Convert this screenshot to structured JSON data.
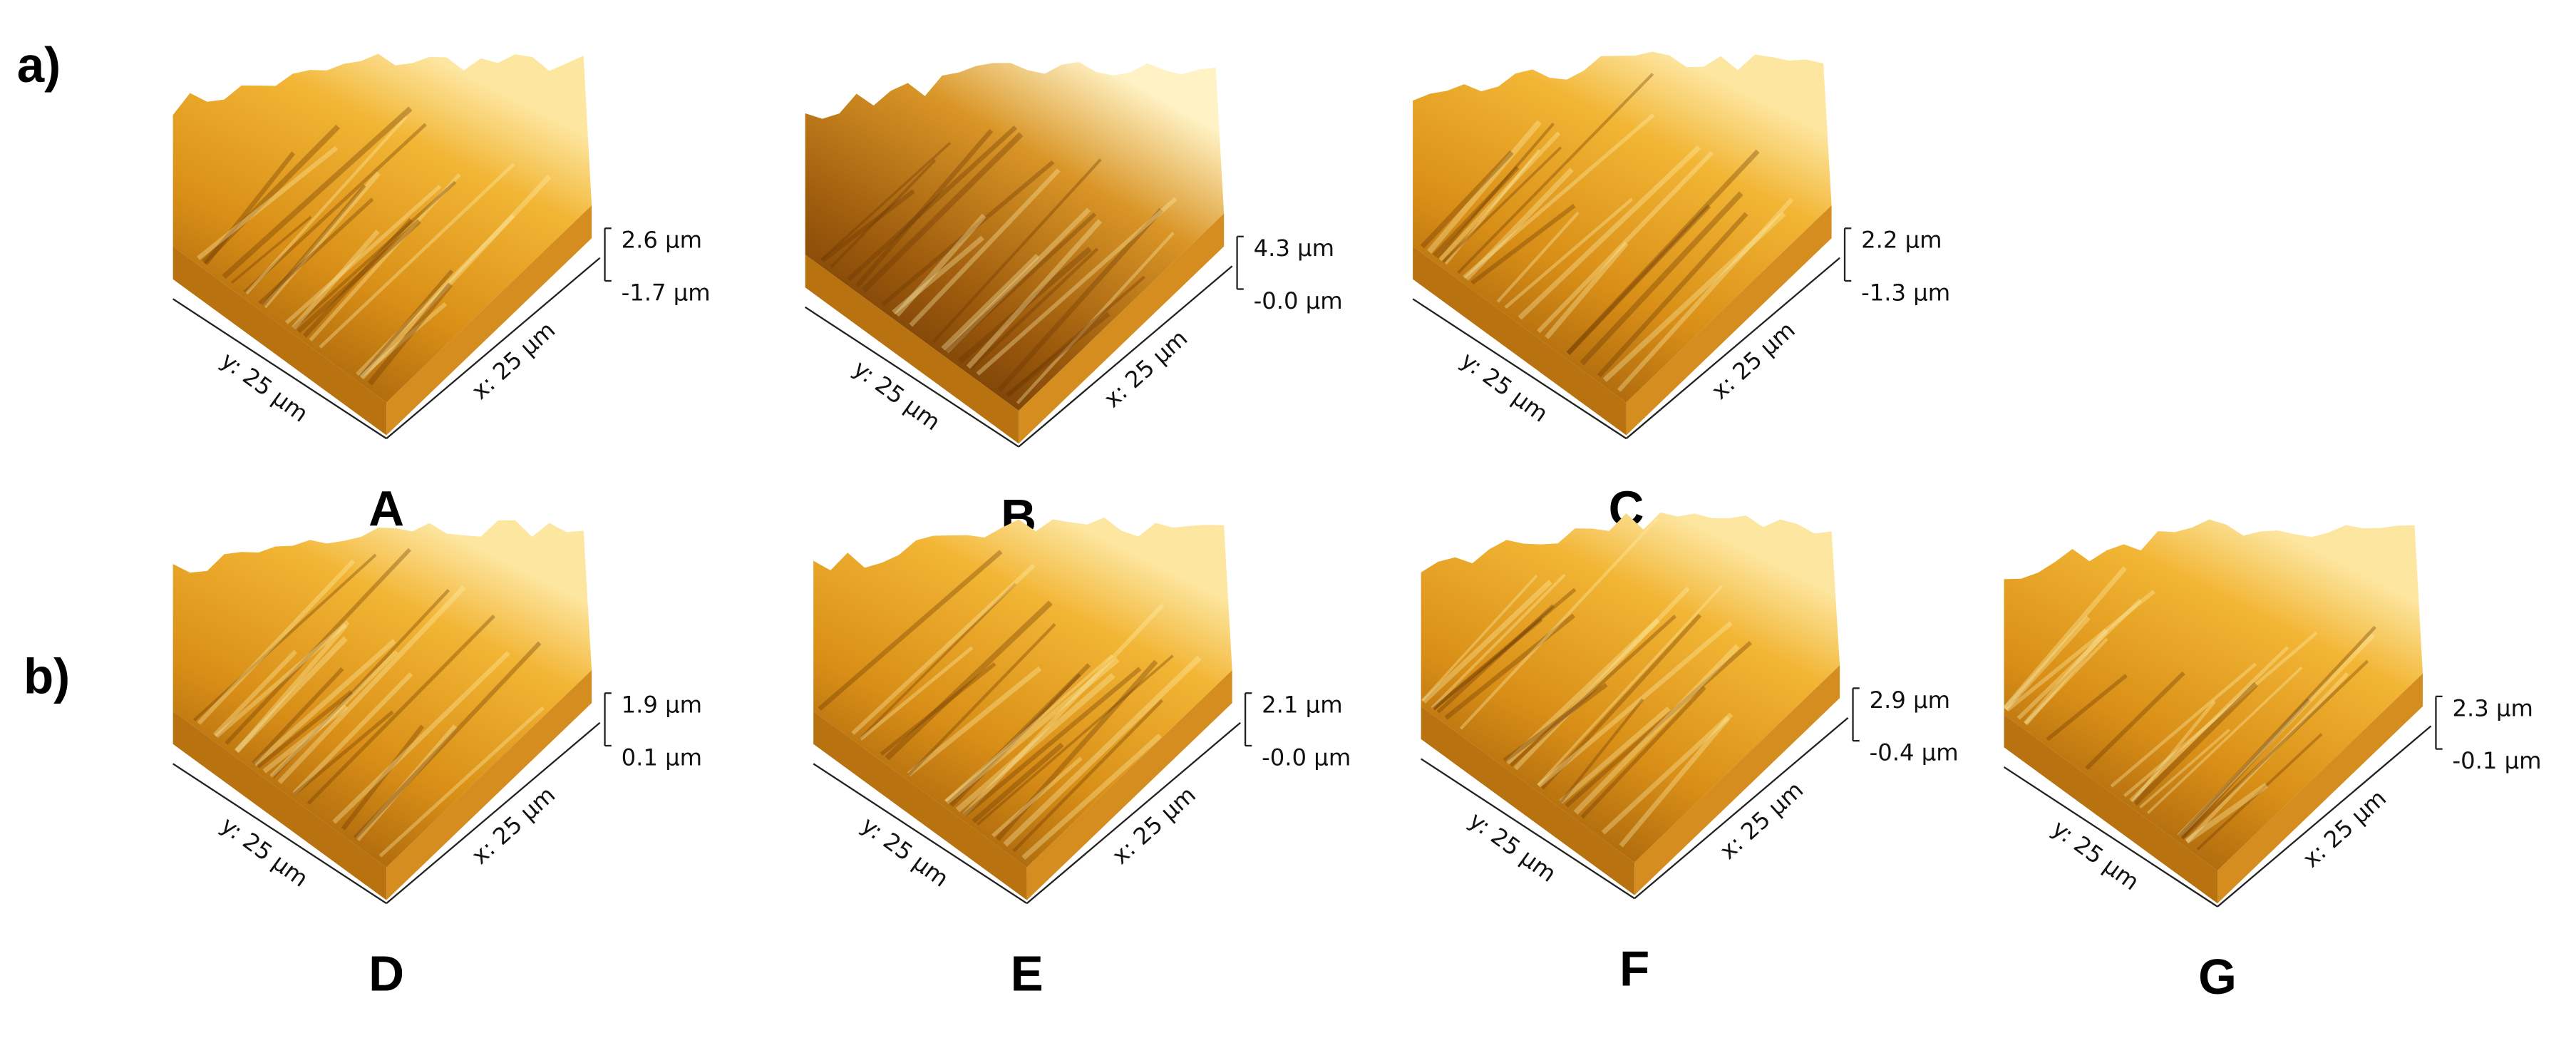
{
  "header": {
    "row_labels": [
      "a)",
      "b)"
    ]
  },
  "panels": [
    {
      "label": "A",
      "z_max": "2.6 µm",
      "z_min": "-1.7 µm",
      "x_axis": "x: 25 µm",
      "y_axis": "y: 25 µm"
    },
    {
      "label": "B",
      "z_max": "4.3 µm",
      "z_min": "-0.0 µm",
      "x_axis": "x: 25 µm",
      "y_axis": "y: 25 µm"
    },
    {
      "label": "C",
      "z_max": "2.2 µm",
      "z_min": "-1.3 µm",
      "x_axis": "x: 25 µm",
      "y_axis": "y: 25 µm"
    },
    {
      "label": "D",
      "z_max": "1.9 µm",
      "z_min": "0.1 µm",
      "x_axis": "x: 25 µm",
      "y_axis": "y: 25 µm"
    },
    {
      "label": "E",
      "z_max": "2.1 µm",
      "z_min": "-0.0 µm",
      "x_axis": "x: 25 µm",
      "y_axis": "y: 25 µm"
    },
    {
      "label": "F",
      "z_max": "2.9 µm",
      "z_min": "-0.4 µm",
      "x_axis": "x: 25 µm",
      "y_axis": "y: 25 µm"
    },
    {
      "label": "G",
      "z_max": "2.3 µm",
      "z_min": "-0.1 µm",
      "x_axis": "x: 25 µm",
      "y_axis": "y: 25 µm"
    }
  ]
}
